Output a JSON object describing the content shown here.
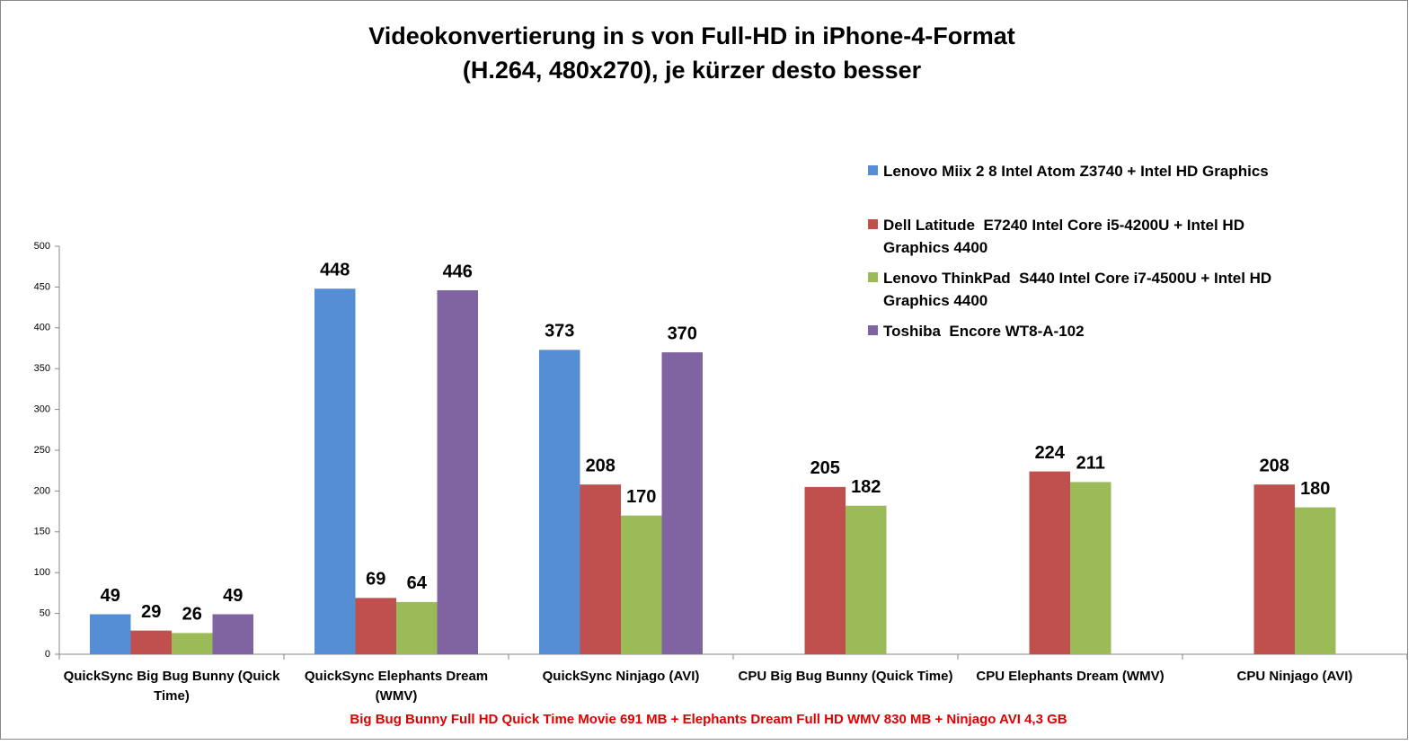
{
  "chart_data": {
    "type": "bar",
    "title": [
      "Videokonvertierung in s von Full-HD in iPhone-4-Format",
      "(H.264, 480x270), je kürzer desto besser"
    ],
    "x_label": "Big Bug Bunny Full HD Quick Time Movie 691 MB + Elephants Dream Full HD WMV 830 MB + Ninjago AVI 4,3 GB",
    "categories": [
      "QuickSync Big Bug Bunny (Quick Time)",
      "QuickSync Elephants Dream (WMV)",
      "QuickSync Ninjago (AVI)",
      "CPU Big Bug Bunny (Quick Time)",
      "CPU Elephants Dream (WMV)",
      "CPU Ninjago (AVI)"
    ],
    "series": [
      {
        "name": "Lenovo Miix 2 8 Intel Atom Z3740 + Intel HD Graphics",
        "color": "#558ed5",
        "values": [
          49,
          448,
          373,
          null,
          null,
          null
        ]
      },
      {
        "name": "Dell Latitude  E7240 Intel Core i5-4200U + Intel HD Graphics 4400",
        "color": "#c0504d",
        "values": [
          29,
          69,
          208,
          205,
          224,
          208
        ]
      },
      {
        "name": "Lenovo ThinkPad  S440 Intel Core i7-4500U + Intel HD Graphics 4400",
        "color": "#9bbb59",
        "values": [
          26,
          64,
          170,
          182,
          211,
          180
        ]
      },
      {
        "name": "Toshiba  Encore WT8-A-102",
        "color": "#8064a2",
        "values": [
          49,
          446,
          370,
          null,
          null,
          null
        ]
      }
    ],
    "ylim": [
      0,
      500
    ],
    "yticks": [
      0,
      50,
      100,
      150,
      200,
      250,
      300,
      350,
      400,
      450,
      500
    ],
    "grid": false,
    "legend": "right"
  }
}
